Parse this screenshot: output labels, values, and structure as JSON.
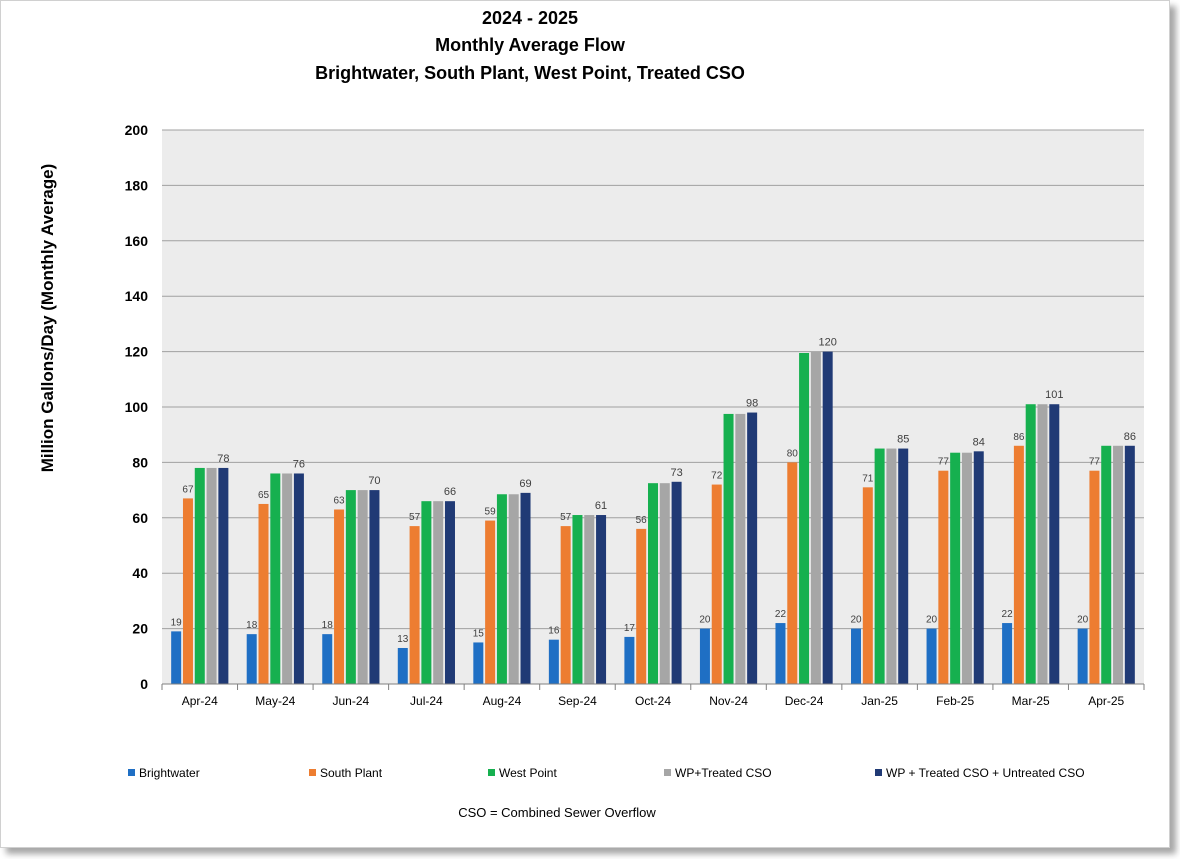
{
  "chart_data": {
    "type": "bar",
    "title_lines": [
      "2024 - 2025",
      "Monthly Average Flow",
      "Brightwater, South Plant, West Point, Treated CSO"
    ],
    "ylabel": "Million Gallons/Day (Monthly Average)",
    "xlabel": "",
    "ylim": [
      0,
      200
    ],
    "yticks": [
      0,
      20,
      40,
      60,
      80,
      100,
      120,
      140,
      160,
      180,
      200
    ],
    "grid": true,
    "legend_position": "bottom",
    "categories": [
      "Apr-24",
      "May-24",
      "Jun-24",
      "Jul-24",
      "Aug-24",
      "Sep-24",
      "Oct-24",
      "Nov-24",
      "Dec-24",
      "Jan-25",
      "Feb-25",
      "Mar-25",
      "Apr-25"
    ],
    "series": [
      {
        "name": "Brightwater",
        "color": "#1f6fc4",
        "values": [
          19,
          18,
          18,
          13,
          15,
          16,
          17,
          20,
          22,
          20,
          20,
          22,
          20
        ],
        "labels": [
          "19",
          "18",
          "18",
          "13",
          "15",
          "16",
          "17",
          "20",
          "22",
          "20",
          "20",
          "22",
          "20"
        ]
      },
      {
        "name": "South Plant",
        "color": "#ed7d31",
        "values": [
          67,
          65,
          63,
          57,
          59,
          57,
          56,
          72,
          80,
          71,
          77,
          86,
          77
        ],
        "labels": [
          "67",
          "65",
          "63",
          "57",
          "59",
          "57",
          "56",
          "72",
          "80",
          "71",
          "77",
          "86",
          "77"
        ]
      },
      {
        "name": "West Point",
        "color": "#16b04f",
        "values": [
          78,
          76,
          70,
          66,
          68.5,
          61,
          72.5,
          97.5,
          119.5,
          85,
          83.5,
          101,
          86
        ],
        "labels": [
          "",
          "",
          "",
          "",
          "",
          "",
          "",
          "",
          "",
          "",
          "",
          "",
          ""
        ]
      },
      {
        "name": "WP+Treated CSO",
        "color": "#a6a6a6",
        "values": [
          78,
          76,
          70,
          66,
          68.5,
          61,
          72.5,
          97.5,
          120,
          85,
          83.5,
          101,
          86
        ],
        "labels": [
          "",
          "",
          "",
          "",
          "",
          "",
          "",
          "",
          "",
          "",
          "",
          "",
          ""
        ]
      },
      {
        "name": "WP + Treated CSO + Untreated CSO",
        "color": "#203a75",
        "values": [
          78,
          76,
          70,
          66,
          69,
          61,
          73,
          98,
          120,
          85,
          84,
          101,
          86
        ],
        "labels": [
          "78",
          "76",
          "70",
          "66",
          "69",
          "61",
          "73",
          "98",
          "120",
          "85",
          "84",
          "101",
          "86"
        ]
      }
    ],
    "footnote": "CSO = Combined Sewer Overflow"
  }
}
